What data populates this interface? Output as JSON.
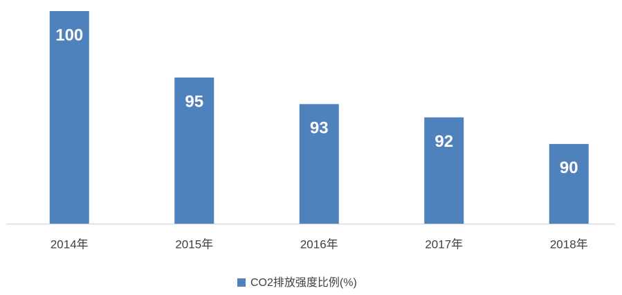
{
  "chart_data": {
    "type": "bar",
    "categories": [
      "2014年",
      "2015年",
      "2016年",
      "2017年",
      "2018年"
    ],
    "series": [
      {
        "name": "CO2排放强度比例(%)",
        "color": "#4f81bd",
        "values": [
          100,
          95,
          93,
          92,
          90
        ]
      }
    ],
    "ylim": [
      84,
      100
    ],
    "legend": "bottom"
  }
}
